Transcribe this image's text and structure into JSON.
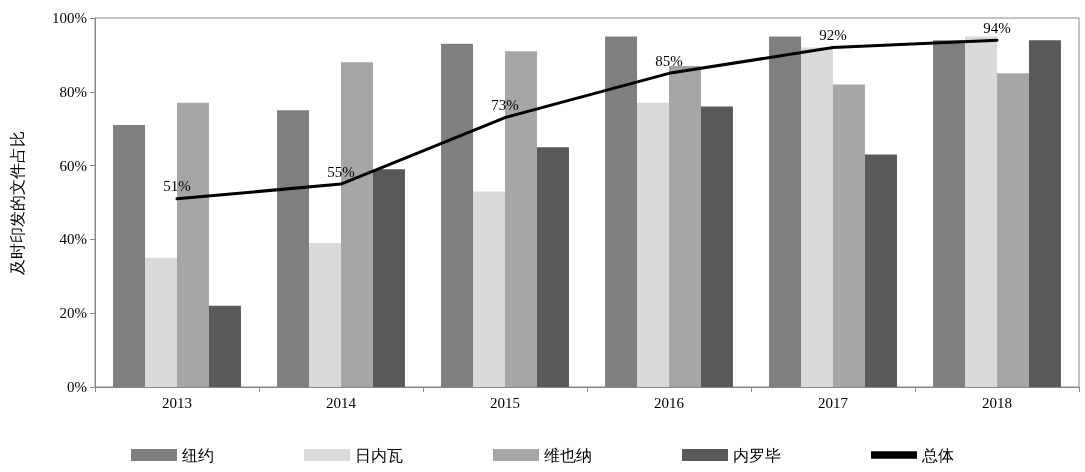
{
  "chart_data": {
    "type": "bar",
    "ylabel": "及时印发的文件占比",
    "categories": [
      "2013",
      "2014",
      "2015",
      "2016",
      "2017",
      "2018"
    ],
    "series": [
      {
        "name": "纽约",
        "color": "#7f7f7f",
        "values": [
          71,
          75,
          93,
          95,
          95,
          94
        ]
      },
      {
        "name": "日内瓦",
        "color": "#d9d9d9",
        "values": [
          35,
          39,
          53,
          77,
          92,
          95
        ]
      },
      {
        "name": "维也纳",
        "color": "#a6a6a6",
        "values": [
          77,
          88,
          91,
          87,
          82,
          85
        ]
      },
      {
        "name": "内罗毕",
        "color": "#595959",
        "values": [
          22,
          59,
          65,
          76,
          63,
          94
        ]
      },
      {
        "name": "总体",
        "type": "line",
        "color": "#000000",
        "values": [
          51,
          55,
          73,
          85,
          92,
          94
        ],
        "value_labels": [
          "51%",
          "55%",
          "73%",
          "85%",
          "92%",
          "94%"
        ]
      }
    ],
    "ylim": [
      0,
      100
    ],
    "yticks": [
      {
        "value": 0,
        "label": "0%"
      },
      {
        "value": 20,
        "label": "20%"
      },
      {
        "value": 40,
        "label": "40%"
      },
      {
        "value": 60,
        "label": "60%"
      },
      {
        "value": 80,
        "label": "80%"
      },
      {
        "value": 100,
        "label": "100%"
      }
    ],
    "grid": false,
    "legend": "bottom",
    "marker": "none",
    "line_style": "solid"
  }
}
